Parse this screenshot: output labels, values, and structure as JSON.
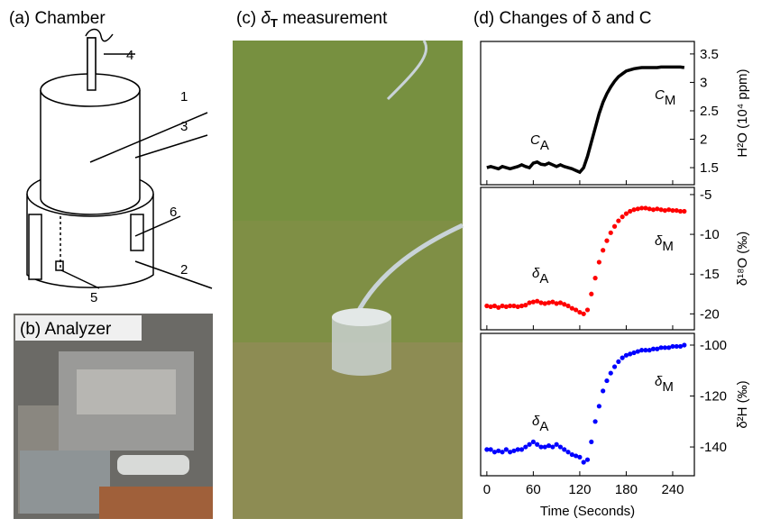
{
  "panel_a": {
    "title": "(a) Chamber",
    "labels": [
      "1",
      "2",
      "3",
      "4",
      "5",
      "6"
    ]
  },
  "panel_b": {
    "title": "(b) Analyzer"
  },
  "panel_c": {
    "label": "(c)",
    "symbol": "δ",
    "subscript": "T",
    "text": "measurement"
  },
  "chart_data": [
    {
      "type": "line",
      "title": "(d) Changes of δ and C",
      "ylabel": "H²O (10⁴ ppm)",
      "color": "#000000",
      "annotations": [
        {
          "text": "C",
          "sub": "A"
        },
        {
          "text": "C",
          "sub": "M"
        }
      ],
      "xlim": [
        -8,
        268
      ],
      "ylim": [
        1.2,
        3.72
      ],
      "yticks": [
        1.5,
        2.0,
        2.5,
        3.0,
        3.5
      ],
      "x": [
        0,
        5,
        10,
        15,
        20,
        25,
        30,
        35,
        40,
        45,
        50,
        55,
        60,
        65,
        70,
        75,
        80,
        85,
        90,
        95,
        100,
        105,
        110,
        115,
        120,
        125,
        130,
        135,
        140,
        145,
        150,
        155,
        160,
        165,
        170,
        175,
        180,
        185,
        190,
        195,
        200,
        205,
        210,
        215,
        220,
        225,
        230,
        235,
        240,
        245,
        250,
        255
      ],
      "values": [
        1.5,
        1.52,
        1.5,
        1.48,
        1.52,
        1.5,
        1.48,
        1.5,
        1.52,
        1.55,
        1.52,
        1.5,
        1.58,
        1.6,
        1.56,
        1.55,
        1.58,
        1.55,
        1.52,
        1.55,
        1.52,
        1.5,
        1.48,
        1.45,
        1.42,
        1.5,
        1.7,
        1.95,
        2.2,
        2.45,
        2.65,
        2.8,
        2.92,
        3.02,
        3.1,
        3.15,
        3.2,
        3.22,
        3.24,
        3.25,
        3.26,
        3.26,
        3.26,
        3.26,
        3.26,
        3.27,
        3.27,
        3.27,
        3.27,
        3.27,
        3.27,
        3.26
      ]
    },
    {
      "type": "scatter",
      "ylabel": "δ¹⁸O (‰)",
      "color": "#ff0000",
      "annotations": [
        {
          "text": "δ",
          "sub": "A"
        },
        {
          "text": "δ",
          "sub": "M"
        }
      ],
      "xlim": [
        -8,
        268
      ],
      "ylim": [
        -22,
        -4.1
      ],
      "yticks": [
        -5,
        -10,
        -15,
        -20
      ],
      "x": [
        0,
        5,
        10,
        15,
        20,
        25,
        30,
        35,
        40,
        45,
        50,
        55,
        60,
        65,
        70,
        75,
        80,
        85,
        90,
        95,
        100,
        105,
        110,
        115,
        120,
        125,
        130,
        135,
        140,
        145,
        150,
        155,
        160,
        165,
        170,
        175,
        180,
        185,
        190,
        195,
        200,
        205,
        210,
        215,
        220,
        225,
        230,
        235,
        240,
        245,
        250,
        255
      ],
      "values": [
        -19,
        -19.1,
        -19,
        -19.2,
        -19,
        -19.1,
        -19,
        -19,
        -19.1,
        -19,
        -18.9,
        -18.6,
        -18.5,
        -18.4,
        -18.6,
        -18.7,
        -18.6,
        -18.5,
        -18.7,
        -18.6,
        -18.8,
        -19,
        -19.3,
        -19.5,
        -19.8,
        -20,
        -19.5,
        -17.5,
        -15.5,
        -13.5,
        -12,
        -10.8,
        -9.8,
        -9,
        -8.3,
        -7.8,
        -7.4,
        -7.1,
        -6.9,
        -6.8,
        -6.7,
        -6.7,
        -6.8,
        -6.9,
        -6.8,
        -6.9,
        -7,
        -6.9,
        -7,
        -7,
        -7.1,
        -7.1
      ]
    },
    {
      "type": "scatter",
      "ylabel": "δ²H (‰)",
      "xlabel": "Time (Seconds)",
      "color": "#0000ff",
      "annotations": [
        {
          "text": "δ",
          "sub": "A"
        },
        {
          "text": "δ",
          "sub": "M"
        }
      ],
      "xlim": [
        -8,
        268
      ],
      "ylim": [
        -151.3,
        -95.4
      ],
      "yticks": [
        -100,
        -120,
        -140
      ],
      "xticks": [
        0,
        60,
        120,
        180,
        240
      ],
      "x": [
        0,
        5,
        10,
        15,
        20,
        25,
        30,
        35,
        40,
        45,
        50,
        55,
        60,
        65,
        70,
        75,
        80,
        85,
        90,
        95,
        100,
        105,
        110,
        115,
        120,
        125,
        130,
        135,
        140,
        145,
        150,
        155,
        160,
        165,
        170,
        175,
        180,
        185,
        190,
        195,
        200,
        205,
        210,
        215,
        220,
        225,
        230,
        235,
        240,
        245,
        250,
        255
      ],
      "values": [
        -141,
        -141,
        -142,
        -141.5,
        -142,
        -141,
        -142,
        -141.5,
        -141,
        -141,
        -140,
        -139,
        -138,
        -139,
        -140,
        -140,
        -139.5,
        -140,
        -139,
        -140,
        -141,
        -142,
        -143,
        -143.5,
        -144,
        -146,
        -145,
        -138,
        -130,
        -124,
        -118,
        -114,
        -111,
        -108.5,
        -106.5,
        -105,
        -104,
        -103.5,
        -103,
        -102.5,
        -102,
        -102,
        -102,
        -101.5,
        -101.5,
        -101,
        -101,
        -101,
        -100.5,
        -100.5,
        -100.5,
        -100
      ]
    }
  ]
}
